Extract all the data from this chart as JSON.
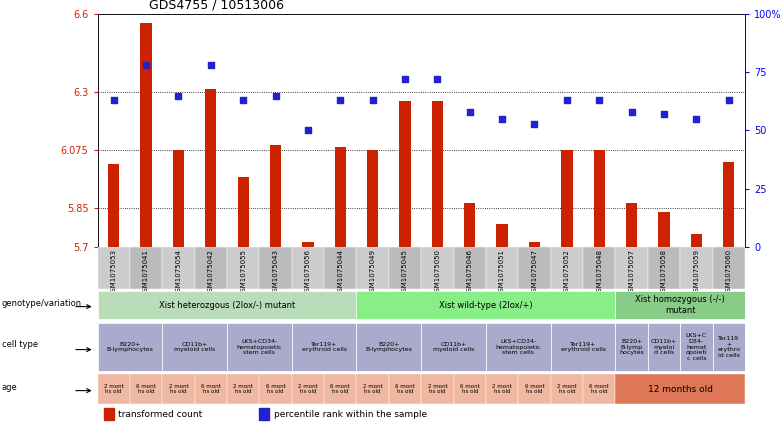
{
  "title": "GDS4755 / 10513006",
  "samples": [
    "GSM1075053",
    "GSM1075041",
    "GSM1075054",
    "GSM1075042",
    "GSM1075055",
    "GSM1075043",
    "GSM1075056",
    "GSM1075044",
    "GSM1075049",
    "GSM1075045",
    "GSM1075050",
    "GSM1075046",
    "GSM1075051",
    "GSM1075047",
    "GSM1075052",
    "GSM1075048",
    "GSM1075057",
    "GSM1075058",
    "GSM1075059",
    "GSM1075060"
  ],
  "bar_values": [
    6.02,
    6.565,
    6.075,
    6.31,
    5.97,
    6.095,
    5.72,
    6.085,
    6.075,
    6.265,
    6.265,
    5.87,
    5.79,
    5.72,
    6.075,
    6.075,
    5.87,
    5.835,
    5.75,
    6.03
  ],
  "dot_values": [
    63,
    78,
    65,
    78,
    63,
    65,
    50,
    63,
    63,
    72,
    72,
    58,
    55,
    53,
    63,
    63,
    58,
    57,
    55,
    63
  ],
  "ylim_left": [
    5.7,
    6.6
  ],
  "ylim_right": [
    0,
    100
  ],
  "yticks_left": [
    5.7,
    5.85,
    6.075,
    6.3,
    6.6
  ],
  "yticks_right": [
    0,
    25,
    50,
    75,
    100
  ],
  "bar_color": "#cc2200",
  "dot_color": "#2222cc",
  "background_color": "#ffffff",
  "chart_bg": "#ffffff",
  "genotype_groups": [
    {
      "label": "Xist heterozgous (2lox/-) mutant",
      "start": 0,
      "end": 8,
      "color": "#b8ddb8"
    },
    {
      "label": "Xist wild-type (2lox/+)",
      "start": 8,
      "end": 16,
      "color": "#88ee88"
    },
    {
      "label": "Xist homozygous (-/-)\nmutant",
      "start": 16,
      "end": 20,
      "color": "#88cc88"
    }
  ],
  "cell_type_groups": [
    {
      "label": "B220+\nB-lymphocytes",
      "start": 0,
      "end": 2
    },
    {
      "label": "CD11b+\nmyeloid cells",
      "start": 2,
      "end": 4
    },
    {
      "label": "LKS+CD34-\nhematopoietic\nstem cells",
      "start": 4,
      "end": 6
    },
    {
      "label": "Ter119+\nerythroid cells",
      "start": 6,
      "end": 8
    },
    {
      "label": "B220+\nB-lymphocytes",
      "start": 8,
      "end": 10
    },
    {
      "label": "CD11b+\nmyeloid cells",
      "start": 10,
      "end": 12
    },
    {
      "label": "LKS+CD34-\nhematopoietic\nstem cells",
      "start": 12,
      "end": 14
    },
    {
      "label": "Ter119+\nerythroid cells",
      "start": 14,
      "end": 16
    },
    {
      "label": "B220+\nB-lymp\nhocytes",
      "start": 16,
      "end": 17
    },
    {
      "label": "CD11b+\nmyeloi\nd cells",
      "start": 17,
      "end": 18
    },
    {
      "label": "LKS+C\nD34-\nhemat\nopoieti\nc cells",
      "start": 18,
      "end": 19
    },
    {
      "label": "Ter119\n+\nerythro\nid cells",
      "start": 19,
      "end": 20
    }
  ],
  "cell_type_color": "#aaaacc",
  "age_groups_normal": [
    {
      "label": "2 mont\nhs old",
      "start": 0,
      "end": 1
    },
    {
      "label": "6 mont\nhs old",
      "start": 1,
      "end": 2
    },
    {
      "label": "2 mont\nhs old",
      "start": 2,
      "end": 3
    },
    {
      "label": "6 mont\nhs old",
      "start": 3,
      "end": 4
    },
    {
      "label": "2 mont\nhs old",
      "start": 4,
      "end": 5
    },
    {
      "label": "6 mont\nhs old",
      "start": 5,
      "end": 6
    },
    {
      "label": "2 mont\nhs old",
      "start": 6,
      "end": 7
    },
    {
      "label": "6 mont\nhs old",
      "start": 7,
      "end": 8
    },
    {
      "label": "2 mont\nhs old",
      "start": 8,
      "end": 9
    },
    {
      "label": "6 mont\nhs old",
      "start": 9,
      "end": 10
    },
    {
      "label": "2 mont\nhs old",
      "start": 10,
      "end": 11
    },
    {
      "label": "6 mont\nhs old",
      "start": 11,
      "end": 12
    },
    {
      "label": "2 mont\nhs old",
      "start": 12,
      "end": 13
    },
    {
      "label": "6 mont\nhs old",
      "start": 13,
      "end": 14
    },
    {
      "label": "2 mont\nhs old",
      "start": 14,
      "end": 15
    },
    {
      "label": "6 mont\nhs old",
      "start": 15,
      "end": 16
    }
  ],
  "age_color_normal": "#f0b8a0",
  "age_group_special": {
    "label": "12 months old",
    "start": 16,
    "end": 20,
    "color": "#dd7755"
  }
}
